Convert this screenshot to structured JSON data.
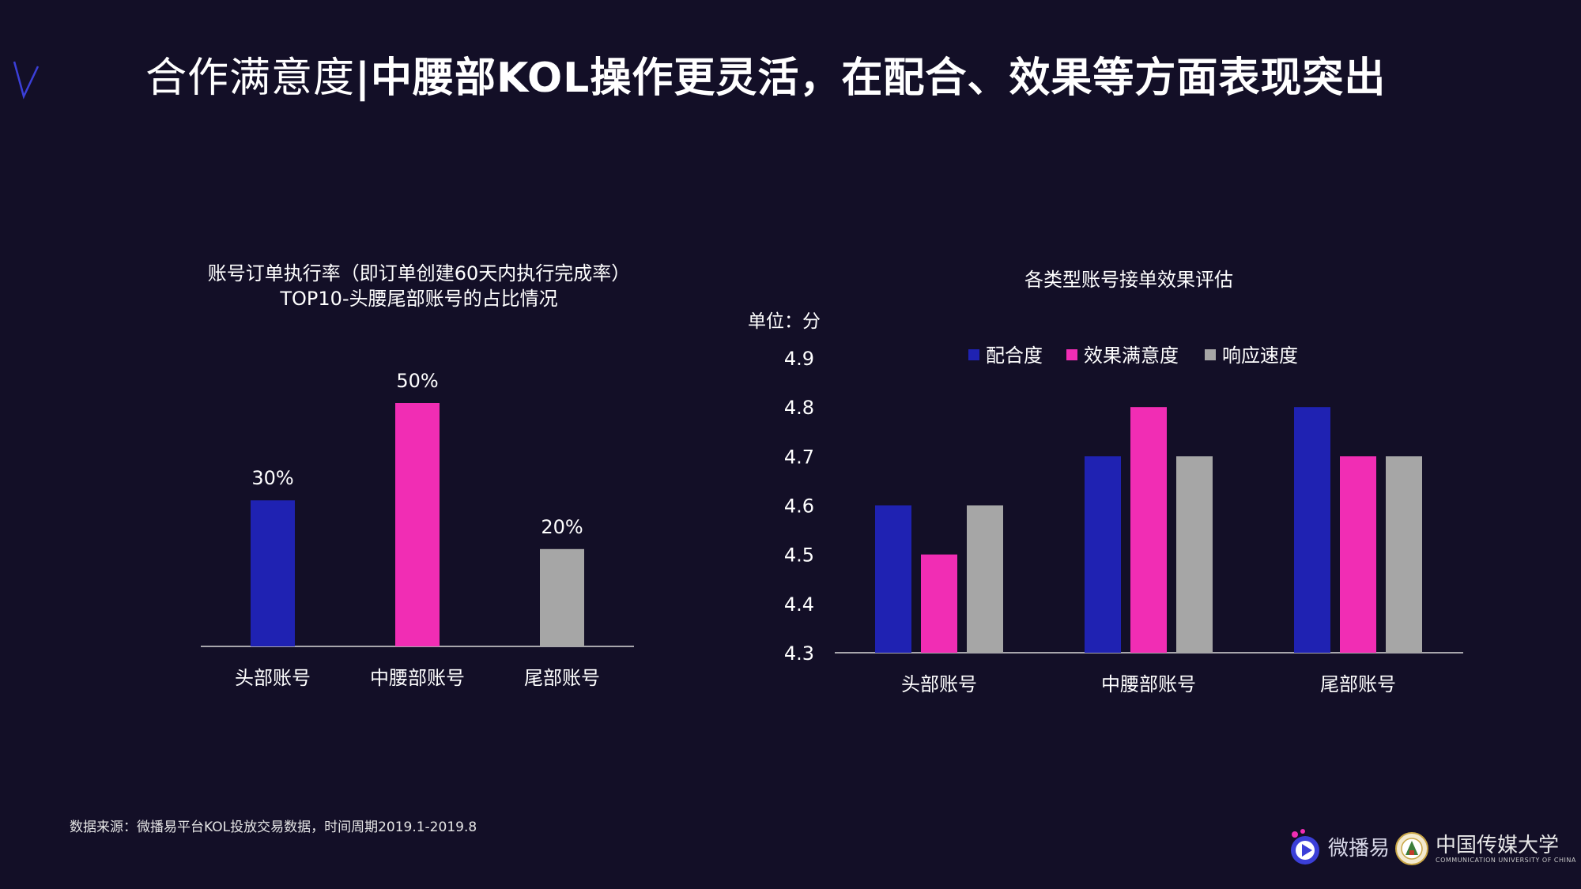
{
  "slide": {
    "title_light": "合作满意度",
    "title_separator": "|",
    "title_bold": "中腰部KOL操作更灵活，在配合、效果等方面表现突出",
    "source_note": "数据来源：微播易平台KOL投放交易数据，时间周期2019.1-2019.8",
    "logo_weibo": "微播易",
    "logo_cuc_name": "中国传媒大学",
    "logo_cuc_sub": "COMMUNICATION UNIVERSITY OF CHINA"
  },
  "colors": {
    "background": "#130f27",
    "blue": "#1f22b2",
    "pink": "#f12db4",
    "gray": "#a6a6a6",
    "axis": "#d9d9d9",
    "accent_v": "#3b3fd8"
  },
  "chart_data": [
    {
      "type": "bar",
      "title_line1": "账号订单执行率（即订单创建60天内执行完成率）",
      "title_line2": "TOP10-头腰尾部账号的占比情况",
      "categories": [
        "头部账号",
        "中腰部账号",
        "尾部账号"
      ],
      "values": [
        30,
        50,
        20
      ],
      "value_labels": [
        "30%",
        "50%",
        "20%"
      ],
      "bar_colors": [
        "#1f22b2",
        "#f12db4",
        "#a6a6a6"
      ],
      "ylim": [
        0,
        50
      ],
      "grid": false
    },
    {
      "type": "bar",
      "title": "各类型账号接单效果评估",
      "unit_label": "单位：分",
      "categories": [
        "头部账号",
        "中腰部账号",
        "尾部账号"
      ],
      "series": [
        {
          "name": "配合度",
          "values": [
            4.6,
            4.7,
            4.8
          ],
          "color": "#1f22b2"
        },
        {
          "name": "效果满意度",
          "values": [
            4.5,
            4.8,
            4.7
          ],
          "color": "#f12db4"
        },
        {
          "name": "响应速度",
          "values": [
            4.6,
            4.7,
            4.7
          ],
          "color": "#a6a6a6"
        }
      ],
      "ylim": [
        4.3,
        4.9
      ],
      "yticks": [
        "4.9",
        "4.8",
        "4.7",
        "4.6",
        "4.5",
        "4.4",
        "4.3"
      ],
      "legend_position": "top",
      "grid": false
    }
  ]
}
